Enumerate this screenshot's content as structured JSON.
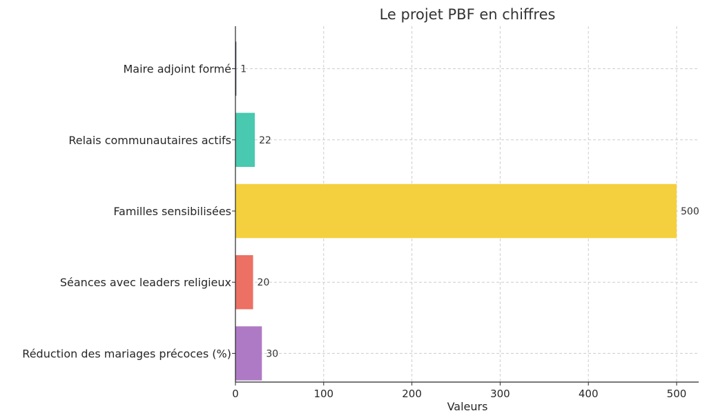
{
  "chart_data": {
    "type": "bar",
    "orientation": "horizontal",
    "title": "Le projet PBF en chiffres",
    "xlabel": "Valeurs",
    "ylabel": "",
    "xlim": [
      0,
      525
    ],
    "xticks": [
      0,
      100,
      200,
      300,
      400,
      500
    ],
    "grid": true,
    "categories": [
      "Maire adjoint formé",
      "Relais communautaires actifs",
      "Familles sensibilisées",
      "Séances avec leaders religieux",
      "Réduction des mariages précoces (%)"
    ],
    "values": [
      1,
      22,
      500,
      20,
      30
    ],
    "colors": [
      "#2c3e50",
      "#48c9b0",
      "#f4d03f",
      "#ec7063",
      "#af7ac5"
    ]
  }
}
